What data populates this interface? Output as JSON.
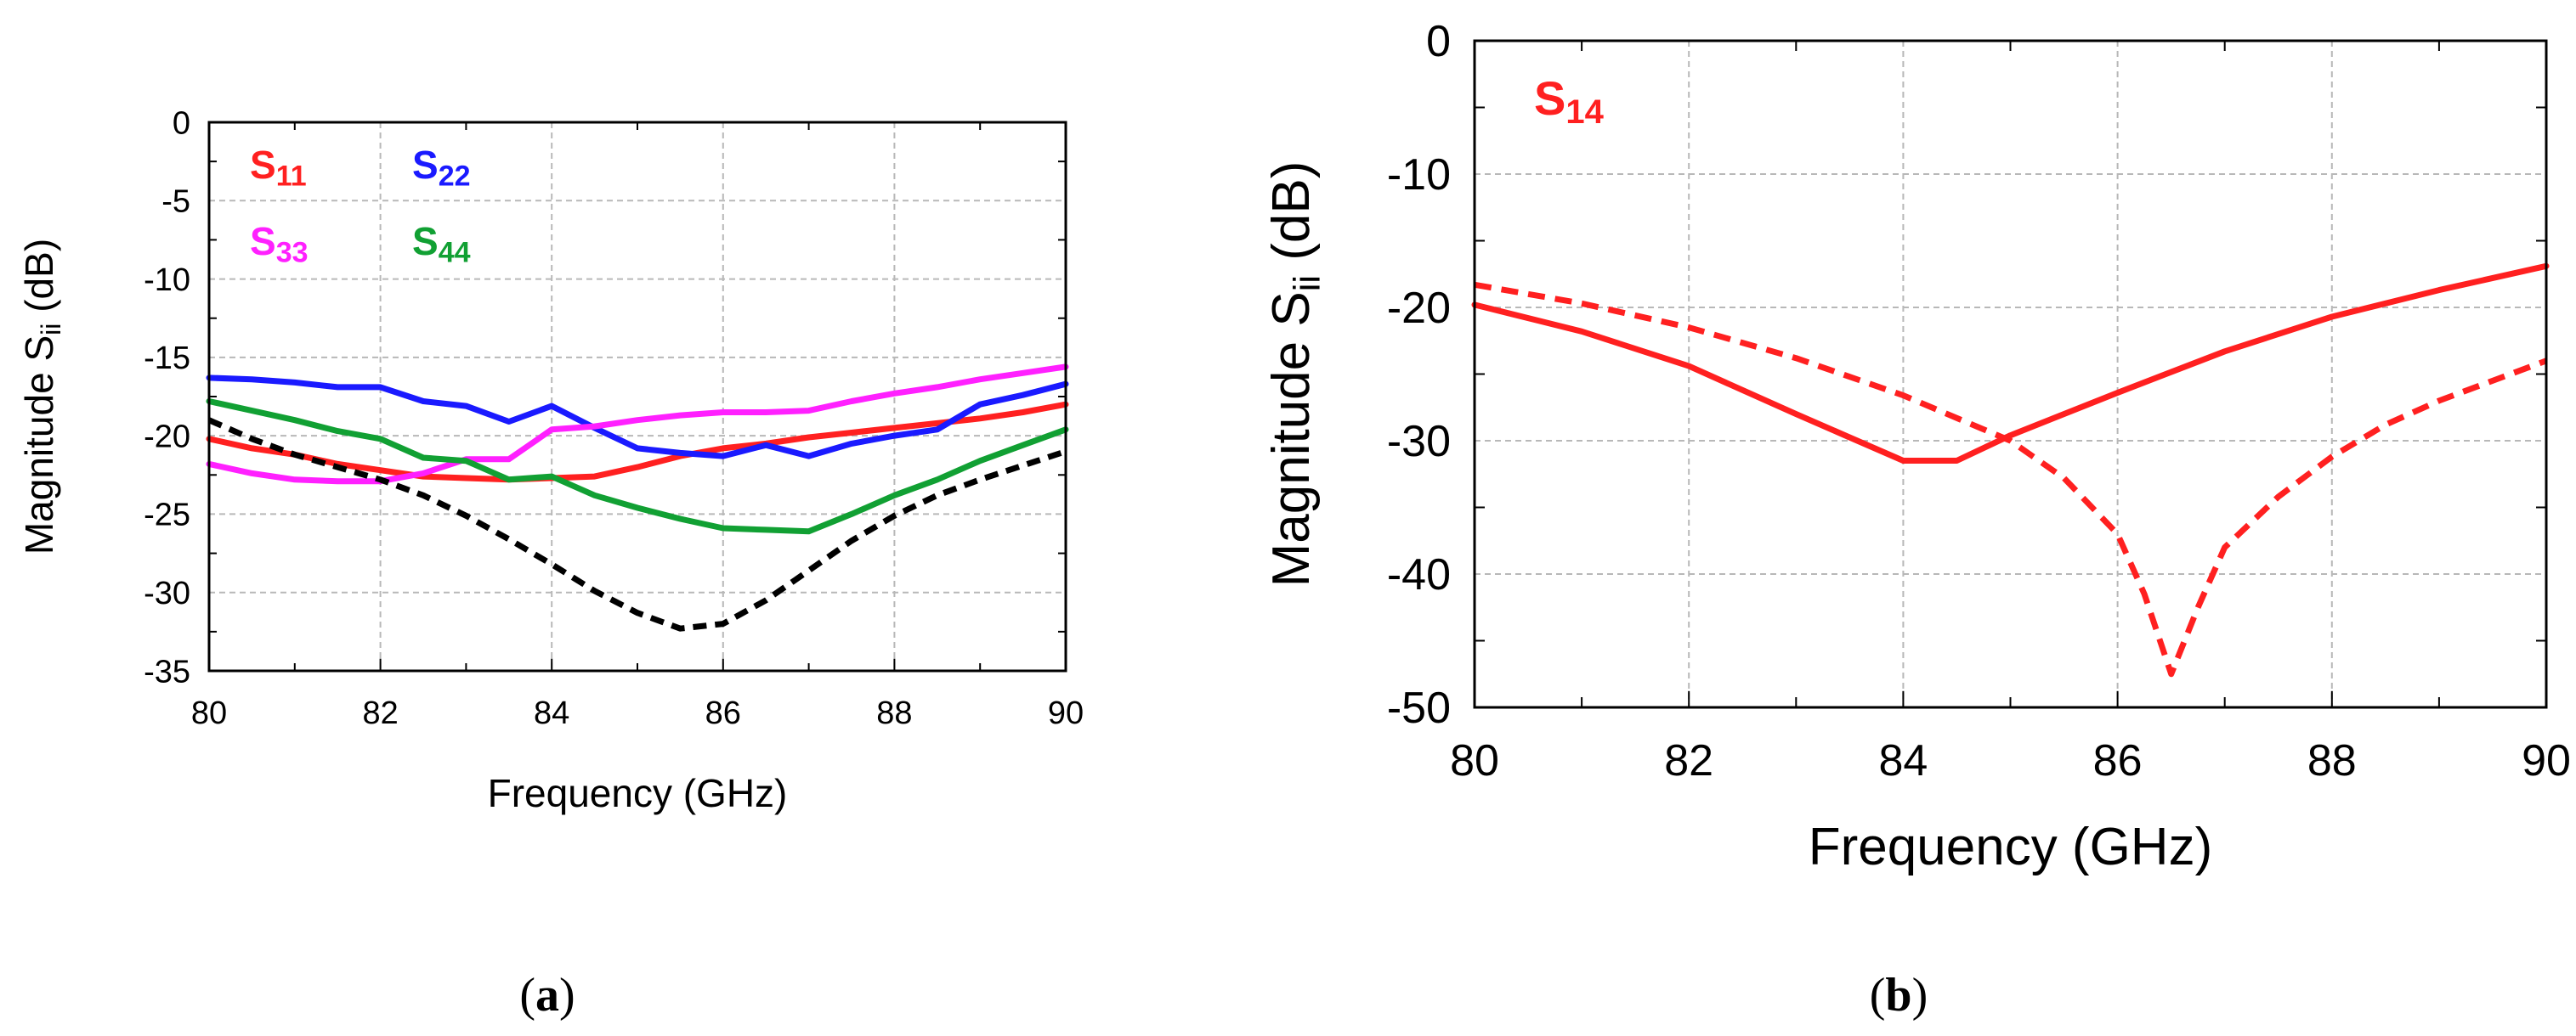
{
  "chart_data": [
    {
      "id": "a",
      "type": "line",
      "panel_label": "(a)",
      "panel_letter": "a",
      "xlabel": "Frequency (GHz)",
      "ylabel_main": "Magnitude S",
      "ylabel_sub": "ii",
      "ylabel_unit": " (dB)",
      "xlim": [
        80,
        90
      ],
      "ylim": [
        -35,
        0
      ],
      "xticks": [
        80,
        82,
        84,
        86,
        88,
        90
      ],
      "yticks": [
        0,
        -5,
        -10,
        -15,
        -20,
        -25,
        -30,
        -35
      ],
      "grid": true,
      "series": [
        {
          "name": "S11",
          "label_main": "S",
          "label_sub": "11",
          "color": "#ff2020",
          "dash": false,
          "x": [
            80,
            80.5,
            81,
            81.5,
            82,
            82.5,
            83,
            83.5,
            84,
            84.5,
            85,
            85.5,
            86,
            86.5,
            87,
            87.5,
            88,
            88.5,
            89,
            89.5,
            90
          ],
          "y": [
            -20.2,
            -20.8,
            -21.2,
            -21.8,
            -22.2,
            -22.6,
            -22.7,
            -22.8,
            -22.7,
            -22.6,
            -22.0,
            -21.3,
            -20.8,
            -20.5,
            -20.1,
            -19.8,
            -19.5,
            -19.2,
            -18.9,
            -18.5,
            -18.0
          ]
        },
        {
          "name": "S22",
          "label_main": "S",
          "label_sub": "22",
          "color": "#1a1aff",
          "dash": false,
          "x": [
            80,
            80.5,
            81,
            81.5,
            82,
            82.5,
            83,
            83.5,
            84,
            84.5,
            85,
            85.5,
            86,
            86.5,
            87,
            87.5,
            88,
            88.5,
            89,
            89.5,
            90
          ],
          "y": [
            -16.3,
            -16.4,
            -16.6,
            -16.9,
            -16.9,
            -17.8,
            -18.1,
            -19.1,
            -18.1,
            -19.5,
            -20.8,
            -21.1,
            -21.3,
            -20.6,
            -21.3,
            -20.5,
            -20.0,
            -19.6,
            -18.0,
            -17.4,
            -16.7
          ]
        },
        {
          "name": "S33",
          "label_main": "S",
          "label_sub": "33",
          "color": "#ff20ff",
          "dash": false,
          "x": [
            80,
            80.5,
            81,
            81.5,
            82,
            82.5,
            83,
            83.5,
            84,
            84.5,
            85,
            85.5,
            86,
            86.5,
            87,
            87.5,
            88,
            88.5,
            89,
            89.5,
            90
          ],
          "y": [
            -21.8,
            -22.4,
            -22.8,
            -22.9,
            -22.9,
            -22.4,
            -21.5,
            -21.5,
            -19.6,
            -19.4,
            -19.0,
            -18.7,
            -18.5,
            -18.5,
            -18.4,
            -17.8,
            -17.3,
            -16.9,
            -16.4,
            -16.0,
            -15.6
          ]
        },
        {
          "name": "S44",
          "label_main": "S",
          "label_sub": "44",
          "color": "#11a033",
          "dash": false,
          "x": [
            80,
            80.5,
            81,
            81.5,
            82,
            82.5,
            83,
            83.5,
            84,
            84.5,
            85,
            85.5,
            86,
            86.5,
            87,
            87.5,
            88,
            88.5,
            89,
            89.5,
            90
          ],
          "y": [
            -17.8,
            -18.4,
            -19.0,
            -19.7,
            -20.2,
            -21.4,
            -21.6,
            -22.8,
            -22.6,
            -23.8,
            -24.6,
            -25.3,
            -25.9,
            -26.0,
            -26.1,
            -25.0,
            -23.8,
            -22.8,
            -21.6,
            -20.6,
            -19.6
          ]
        },
        {
          "name": "reference (dashed)",
          "color": "#000000",
          "dash": true,
          "x": [
            80,
            80.5,
            81,
            81.5,
            82,
            82.5,
            83,
            83.5,
            84,
            84.5,
            85,
            85.5,
            86,
            86.5,
            87,
            87.5,
            88,
            88.5,
            89,
            89.5,
            90
          ],
          "y": [
            -19.0,
            -20.2,
            -21.2,
            -22.0,
            -22.8,
            -23.8,
            -25.1,
            -26.6,
            -28.2,
            -29.9,
            -31.3,
            -32.3,
            -32.0,
            -30.5,
            -28.6,
            -26.7,
            -25.1,
            -23.8,
            -22.8,
            -21.9,
            -21.0
          ]
        }
      ]
    },
    {
      "id": "b",
      "type": "line",
      "panel_label": "(b)",
      "panel_letter": "b",
      "xlabel": "Frequency (GHz)",
      "ylabel_main": "Magnitude S",
      "ylabel_sub": "ii",
      "ylabel_unit": " (dB)",
      "xlim": [
        80,
        90
      ],
      "ylim": [
        -50,
        0
      ],
      "xticks": [
        80,
        82,
        84,
        86,
        88,
        90
      ],
      "yticks": [
        0,
        -10,
        -20,
        -30,
        -40,
        -50
      ],
      "grid": true,
      "series": [
        {
          "name": "S14",
          "label_main": "S",
          "label_sub": "14",
          "color": "#ff2020",
          "dash": false,
          "x": [
            80,
            81,
            82,
            83,
            84,
            84.5,
            85,
            86,
            87,
            88,
            89,
            90
          ],
          "y": [
            -19.8,
            -21.8,
            -24.4,
            -28.0,
            -31.5,
            -31.5,
            -29.6,
            -26.4,
            -23.3,
            -20.7,
            -18.7,
            -16.9
          ]
        },
        {
          "name": "S14 (dashed)",
          "color": "#ff2020",
          "dash": true,
          "x": [
            80,
            81,
            82,
            83,
            84,
            85,
            85.5,
            86,
            86.25,
            86.5,
            86.75,
            87,
            87.5,
            88,
            88.5,
            89,
            90
          ],
          "y": [
            -18.3,
            -19.7,
            -21.5,
            -23.8,
            -26.6,
            -30.0,
            -32.8,
            -37.0,
            -41.5,
            -47.5,
            -42.5,
            -38.0,
            -34.2,
            -31.2,
            -28.8,
            -27.0,
            -24.0
          ]
        }
      ]
    }
  ]
}
